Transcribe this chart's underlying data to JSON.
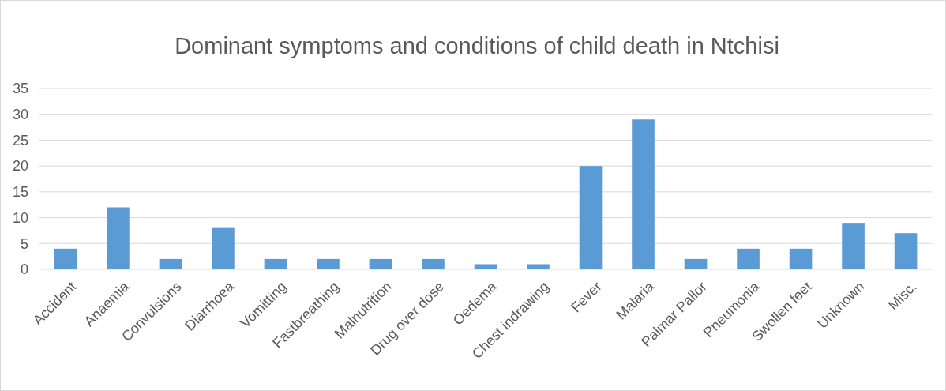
{
  "chart_data": {
    "type": "bar",
    "title": "Dominant symptoms and conditions of child death in Ntchisi",
    "categories": [
      "Accident",
      "Anaemia",
      "Convulsions",
      "Diarrhoea",
      "Vomitting",
      "Fastbreathing",
      "Malnutrition",
      "Drug over dose",
      "Oedema",
      "Chest indrawing",
      "Fever",
      "Malaria",
      "Palmar Pallor",
      "Pneumonia",
      "Swollen feet",
      "Unknown",
      "Misc."
    ],
    "values": [
      4,
      12,
      2,
      8,
      2,
      2,
      2,
      2,
      1,
      1,
      20,
      29,
      2,
      4,
      4,
      9,
      7
    ],
    "color": "#5b9bd5",
    "ylim": [
      0,
      35
    ],
    "yticks": [
      0,
      5,
      10,
      15,
      20,
      25,
      30,
      35
    ],
    "grid": "y"
  }
}
